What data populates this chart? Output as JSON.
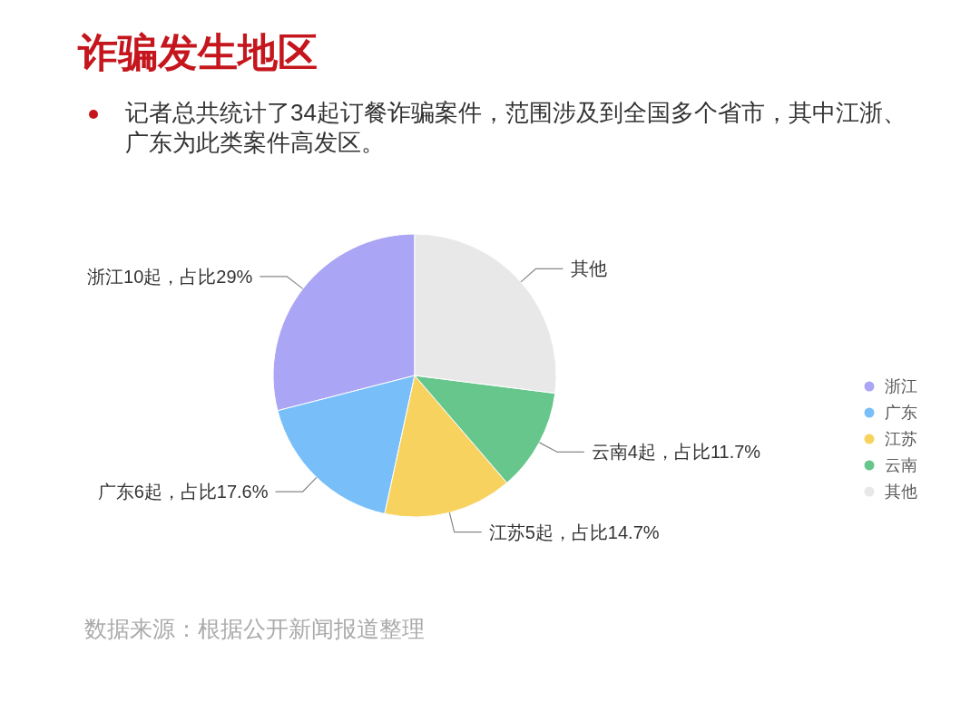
{
  "chart_data": {
    "type": "pie",
    "title": "诈骗发生地区",
    "subtitle": "记者总共统计了34起订餐诈骗案件，范围涉及到全国多个省市，其中江浙、广东为此类案件高发区。",
    "categories": [
      "浙江",
      "广东",
      "江苏",
      "云南",
      "其他"
    ],
    "values": [
      29,
      17.6,
      14.7,
      11.7,
      27
    ],
    "colors": [
      "#aba5f5",
      "#78bff9",
      "#f8d25f",
      "#67c68c",
      "#e8e8e8"
    ],
    "value_labels": [
      "浙江10起，占比29%",
      "广东6起，占比17.6%",
      "江苏5起，占比14.7%",
      "云南4起，占比11.7%",
      "其他"
    ],
    "legend": "right",
    "annotations": [
      "数据来源：根据公开新闻报道整理"
    ]
  }
}
